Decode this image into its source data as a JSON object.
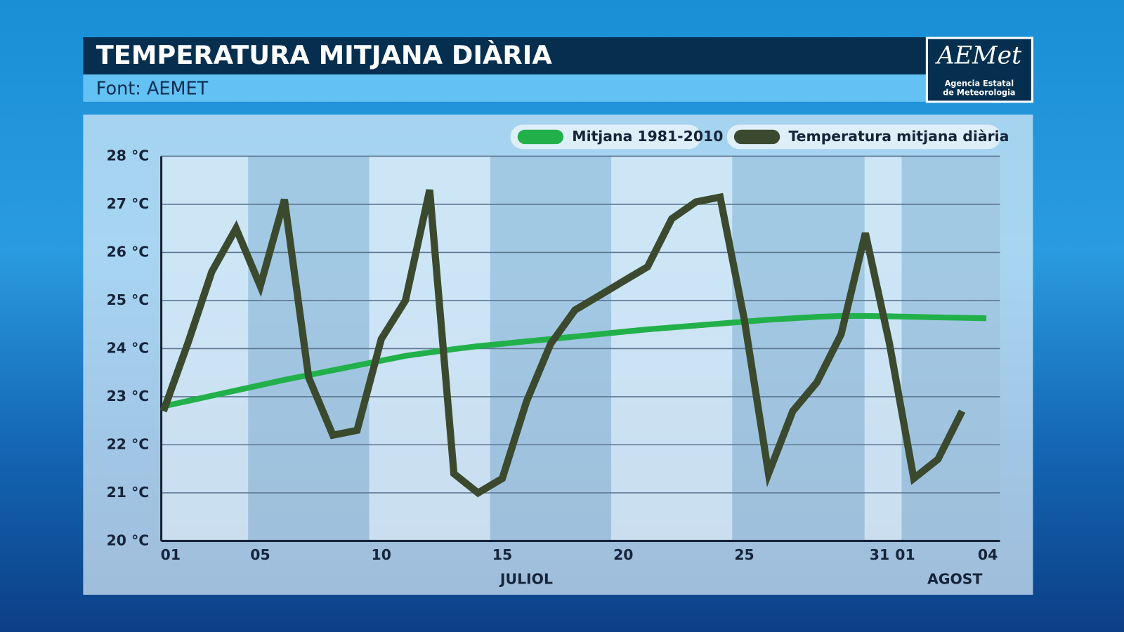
{
  "chart_data": {
    "type": "line",
    "title": "TEMPERATURA MITJANA DIÀRIA",
    "subtitle": "Font: AEMET",
    "categories": [
      "01",
      null,
      null,
      null,
      "05",
      null,
      null,
      null,
      null,
      "10",
      null,
      null,
      null,
      null,
      "15",
      null,
      null,
      null,
      null,
      "20",
      null,
      null,
      null,
      null,
      "25",
      null,
      null,
      null,
      null,
      null,
      "31",
      "01",
      null,
      null,
      "04"
    ],
    "groups": [
      {
        "label": "JULIOL",
        "from": 0,
        "to": 30
      },
      {
        "label": "AGOST",
        "from": 31,
        "to": 34
      }
    ],
    "series": [
      {
        "name": "Mitjana 1981-2010",
        "color": "#22b04a",
        "values": [
          22.8,
          22.91,
          23.02,
          23.13,
          23.24,
          23.35,
          23.45,
          23.55,
          23.65,
          23.75,
          23.85,
          23.92,
          23.99,
          24.05,
          24.1,
          24.15,
          24.2,
          24.25,
          24.3,
          24.35,
          24.4,
          24.44,
          24.48,
          24.52,
          24.56,
          24.6,
          24.63,
          24.66,
          24.68,
          24.68,
          24.67,
          24.66,
          24.65,
          24.64,
          24.63
        ]
      },
      {
        "name": "Temperatura mitjana diària",
        "color": "#3b4a2e",
        "values": [
          22.7,
          24.1,
          25.6,
          26.5,
          25.3,
          27.1,
          23.4,
          22.2,
          22.3,
          24.2,
          25.0,
          27.3,
          21.4,
          21.0,
          21.3,
          22.9,
          24.1,
          24.8,
          25.1,
          25.4,
          25.7,
          26.7,
          27.05,
          27.15,
          24.6,
          21.4,
          22.7,
          23.3,
          24.3,
          26.4,
          24.1,
          21.3,
          21.7,
          22.7,
          null
        ]
      }
    ],
    "ylim": [
      20,
      28
    ],
    "yticks": [
      {
        "value": 20,
        "label": "20 °C"
      },
      {
        "value": 21,
        "label": "21 °C"
      },
      {
        "value": 22,
        "label": "22 °C"
      },
      {
        "value": 23,
        "label": "23 °C"
      },
      {
        "value": 24,
        "label": "24 °C"
      },
      {
        "value": 25,
        "label": "25 °C"
      },
      {
        "value": 26,
        "label": "26 °C"
      },
      {
        "value": 27,
        "label": "27 °C"
      },
      {
        "value": 28,
        "label": "28 °C"
      }
    ],
    "grid": true,
    "legend": "top-right"
  },
  "logo": {
    "text": "AEMet",
    "caption": [
      "Agencia Estatal",
      "de Meteorologia"
    ]
  }
}
